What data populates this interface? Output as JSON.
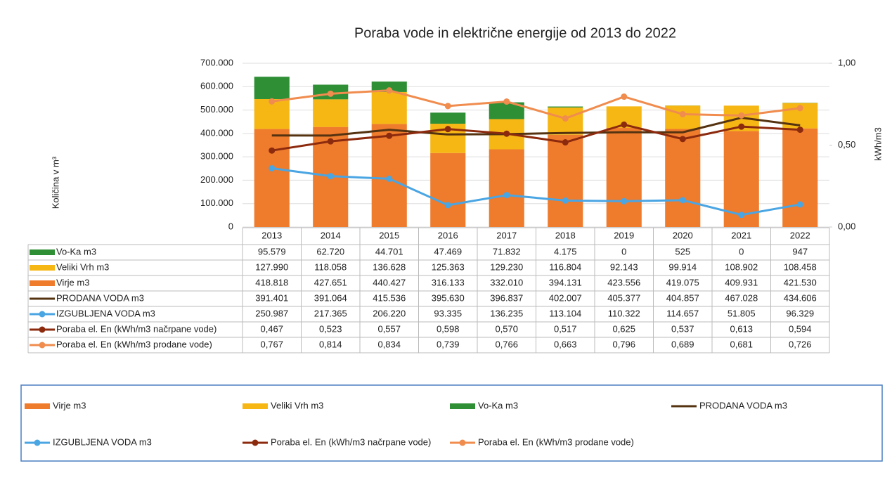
{
  "chart_data": {
    "type": "bar",
    "title": "Poraba vode in električne energije od 2013 do 2022",
    "ylabel": "Količina v m³",
    "y2label": "kWh/m3",
    "categories": [
      "2013",
      "2014",
      "2015",
      "2016",
      "2017",
      "2018",
      "2019",
      "2020",
      "2021",
      "2022"
    ],
    "ylim": [
      0,
      700000
    ],
    "yticks": [
      0,
      {
        "value": 100000,
        "label": "100.000"
      },
      {
        "value": 200000,
        "label": "200.000"
      },
      {
        "value": 300000,
        "label": "300.000"
      },
      {
        "value": 400000,
        "label": "400.000"
      },
      {
        "value": 500000,
        "label": "500.000"
      },
      {
        "value": 600000,
        "label": "600.000"
      },
      {
        "value": 700000,
        "label": "700.000"
      }
    ],
    "y2lim": [
      0,
      1
    ],
    "y2ticks": [
      {
        "value": 0,
        "label": "0,00"
      },
      {
        "value": 0.5,
        "label": "0,50"
      },
      {
        "value": 1,
        "label": "1,00"
      }
    ],
    "grid": true,
    "series": [
      {
        "name": "Virje m3",
        "type": "bar",
        "color": "#ef7b2c",
        "values": [
          418818,
          427651,
          440427,
          316133,
          332010,
          394131,
          423556,
          419075,
          409931,
          421530
        ],
        "value_labels": [
          "418.818",
          "427.651",
          "440.427",
          "316.133",
          "332.010",
          "394.131",
          "423.556",
          "419.075",
          "409.931",
          "421.530"
        ]
      },
      {
        "name": "Veliki Vrh m3",
        "type": "bar",
        "color": "#f6b715",
        "values": [
          127990,
          118058,
          136628,
          125363,
          129230,
          116804,
          92143,
          99914,
          108902,
          108458
        ],
        "value_labels": [
          "127.990",
          "118.058",
          "136.628",
          "125.363",
          "129.230",
          "116.804",
          "92.143",
          "99.914",
          "108.902",
          "108.458"
        ]
      },
      {
        "name": "Vo-Ka m3",
        "type": "bar",
        "color": "#2f8f35",
        "values": [
          95579,
          62720,
          44701,
          47469,
          71832,
          4175,
          0,
          525,
          0,
          947
        ],
        "value_labels": [
          "95.579",
          "62.720",
          "44.701",
          "47.469",
          "71.832",
          "4.175",
          "0",
          "525",
          "0",
          "947"
        ]
      },
      {
        "name": "PRODANA VODA m3",
        "type": "line",
        "color": "#553311",
        "marker": false,
        "values": [
          391401,
          391064,
          415536,
          395630,
          396837,
          402007,
          405377,
          404857,
          467028,
          434606
        ],
        "value_labels": [
          "391.401",
          "391.064",
          "415.536",
          "395.630",
          "396.837",
          "402.007",
          "405.377",
          "404.857",
          "467.028",
          "434.606"
        ]
      },
      {
        "name": "IZGUBLJENA VODA m3",
        "type": "line",
        "color": "#4aa5e3",
        "marker": true,
        "values": [
          250987,
          217365,
          206220,
          93335,
          136235,
          113104,
          110322,
          114657,
          51805,
          96329
        ],
        "value_labels": [
          "250.987",
          "217.365",
          "206.220",
          "93.335",
          "136.235",
          "113.104",
          "110.322",
          "114.657",
          "51.805",
          "96.329"
        ]
      },
      {
        "name": "Poraba el. En (kWh/m3 načrpane vode)",
        "type": "line",
        "axis": "y2",
        "color": "#8c2a0e",
        "marker": true,
        "values": [
          0.467,
          0.523,
          0.557,
          0.598,
          0.57,
          0.517,
          0.625,
          0.537,
          0.613,
          0.594
        ],
        "value_labels": [
          "0,467",
          "0,523",
          "0,557",
          "0,598",
          "0,570",
          "0,517",
          "0,625",
          "0,537",
          "0,613",
          "0,594"
        ]
      },
      {
        "name": "Poraba el. En (kWh/m3  prodane vode)",
        "type": "line",
        "axis": "y2",
        "color": "#f08c4e",
        "marker": true,
        "values": [
          0.767,
          0.814,
          0.834,
          0.739,
          0.766,
          0.663,
          0.796,
          0.689,
          0.681,
          0.726
        ],
        "value_labels": [
          "0,767",
          "0,814",
          "0,834",
          "0,739",
          "0,766",
          "0,663",
          "0,796",
          "0,689",
          "0,681",
          "0,726"
        ]
      }
    ]
  }
}
